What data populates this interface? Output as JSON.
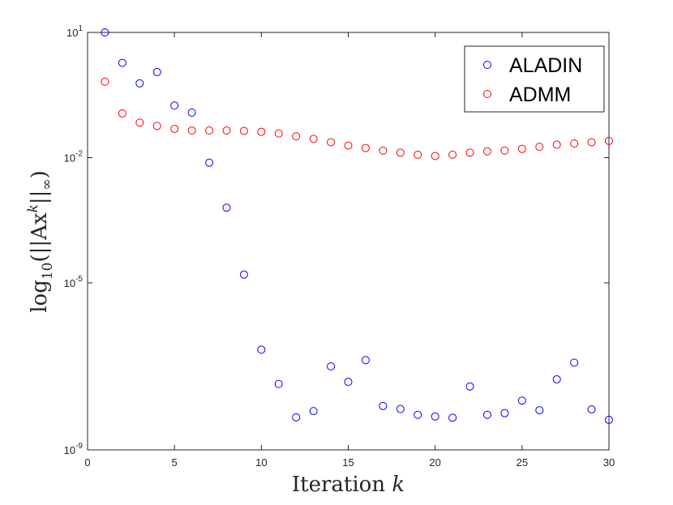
{
  "chart_data": {
    "type": "scatter",
    "xlabel_text": "Iteration ",
    "xlabel_var": "k",
    "ylabel_prefix": "log",
    "ylabel_sub": "10",
    "ylabel_body": "(||Ax",
    "ylabel_sup": "k",
    "ylabel_tail": "||",
    "ylabel_inf": "∞",
    "ylabel_close": ")",
    "xlim": [
      0,
      30
    ],
    "xticks": [
      0,
      5,
      10,
      15,
      20,
      25,
      30
    ],
    "ylim_log10": [
      -9,
      1
    ],
    "yscale": "log",
    "yticks": [
      {
        "exp": -9,
        "base": "10",
        "sup": "-9"
      },
      {
        "exp": -5,
        "base": "10",
        "sup": "-5"
      },
      {
        "exp": -2,
        "base": "10",
        "sup": "-2"
      },
      {
        "exp": 1,
        "base": "10",
        "sup": "1"
      }
    ],
    "grid": false,
    "legend_position": "top-right",
    "marker": "circle",
    "series": [
      {
        "name": "ALADIN",
        "color": "#0000ff",
        "x": [
          1,
          2,
          3,
          4,
          5,
          6,
          7,
          8,
          9,
          10,
          11,
          12,
          13,
          14,
          15,
          16,
          17,
          18,
          19,
          20,
          21,
          22,
          23,
          24,
          25,
          26,
          27,
          28,
          29,
          30
        ],
        "log10_y": [
          1.0,
          0.27,
          -0.22,
          0.05,
          -0.75,
          -0.92,
          -2.12,
          -3.2,
          -4.8,
          -6.6,
          -7.42,
          -8.22,
          -8.07,
          -7.0,
          -7.37,
          -6.85,
          -7.95,
          -8.02,
          -8.16,
          -8.2,
          -8.23,
          -7.48,
          -8.16,
          -8.12,
          -7.82,
          -8.05,
          -7.31,
          -6.91,
          -8.03,
          -8.28
        ]
      },
      {
        "name": "ADMM",
        "color": "#ff0000",
        "x": [
          1,
          2,
          3,
          4,
          5,
          6,
          7,
          8,
          9,
          10,
          11,
          12,
          13,
          14,
          15,
          16,
          17,
          18,
          19,
          20,
          21,
          22,
          23,
          24,
          25,
          26,
          27,
          28,
          29,
          30
        ],
        "log10_y": [
          -0.18,
          -0.94,
          -1.16,
          -1.24,
          -1.31,
          -1.35,
          -1.35,
          -1.35,
          -1.36,
          -1.38,
          -1.42,
          -1.49,
          -1.55,
          -1.63,
          -1.71,
          -1.77,
          -1.83,
          -1.88,
          -1.93,
          -1.96,
          -1.93,
          -1.88,
          -1.85,
          -1.83,
          -1.79,
          -1.74,
          -1.69,
          -1.66,
          -1.63,
          -1.6
        ]
      }
    ]
  }
}
